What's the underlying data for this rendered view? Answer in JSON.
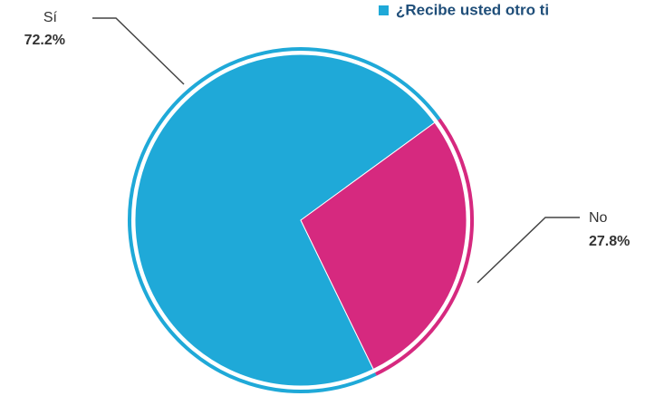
{
  "chart_data": {
    "type": "pie",
    "legend": "¿Recibe usted otro ti",
    "categories": [
      "Sí",
      "No"
    ],
    "values": [
      72.2,
      27.8
    ],
    "value_labels": [
      "72.2%",
      "27.8%"
    ],
    "colors": [
      "#1fa9d8",
      "#d6297f"
    ]
  }
}
